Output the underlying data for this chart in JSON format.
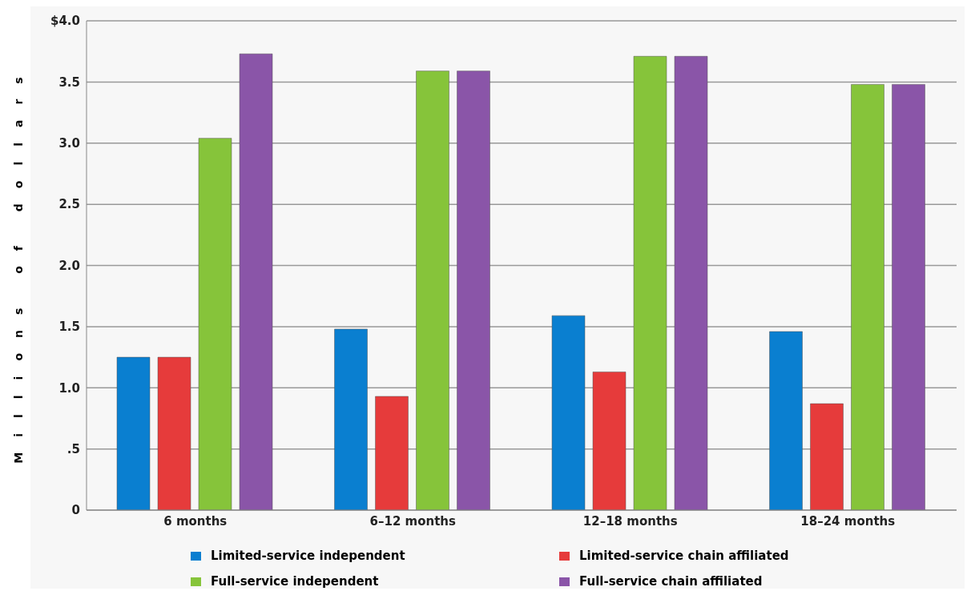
{
  "chart_data": {
    "type": "bar",
    "ylabel": "Millions of dollars",
    "categories": [
      "6 months",
      "6–12 months",
      "12–18 months",
      "18–24 months"
    ],
    "series": [
      {
        "name": "Limited-service independent",
        "color": "#0a7fd0",
        "values": [
          1.25,
          1.48,
          1.59,
          1.46
        ]
      },
      {
        "name": "Limited-service chain affiliated",
        "color": "#e63b3b",
        "values": [
          1.25,
          0.93,
          1.13,
          0.87
        ]
      },
      {
        "name": "Full-service independent",
        "color": "#86c43a",
        "values": [
          3.04,
          3.59,
          3.71,
          3.48
        ]
      },
      {
        "name": "Full-service chain affiliated",
        "color": "#8a55a8",
        "values": [
          3.73,
          3.59,
          3.71,
          3.48
        ]
      }
    ],
    "ylim": [
      0,
      4
    ],
    "yticks": [
      0,
      {
        "value": 0.5,
        "label": ".5"
      },
      {
        "value": 1,
        "label": "1.0"
      },
      1.5,
      {
        "value": 2,
        "label": "2.0"
      },
      2.5,
      {
        "value": 3,
        "label": "3.0"
      },
      3.5,
      {
        "value": 4,
        "label": "$4.0"
      }
    ],
    "grid": "y",
    "legend": "bottom"
  }
}
